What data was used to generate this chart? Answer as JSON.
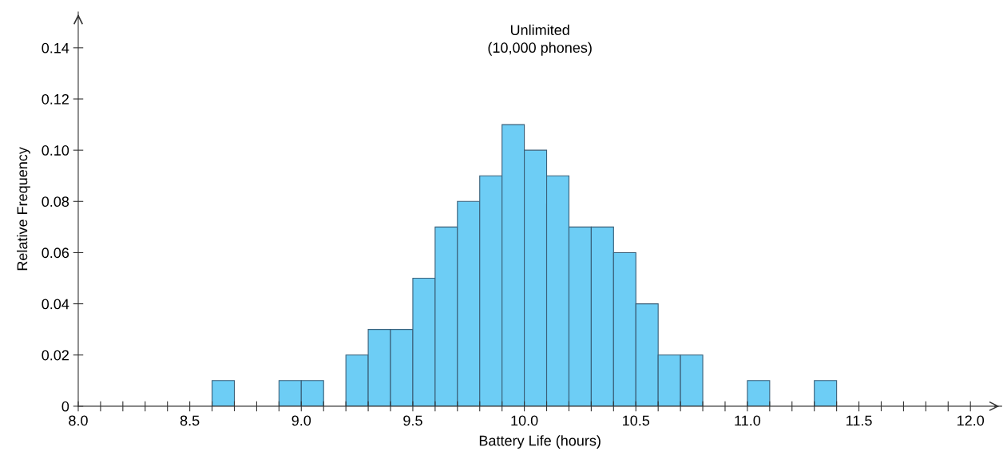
{
  "chart_data": {
    "type": "histogram",
    "title": "Unlimited\n(10,000 phones)",
    "xlabel": "Battery Life (hours)",
    "ylabel": "Relative Frequency",
    "bins": [
      8.6,
      8.7,
      8.8,
      8.9,
      9.0,
      9.1,
      9.2,
      9.3,
      9.4,
      9.5,
      9.6,
      9.7,
      9.8,
      9.9,
      10.0,
      10.1,
      10.2,
      10.3,
      10.4,
      10.5,
      10.6,
      10.7,
      10.8,
      10.9,
      11.0,
      11.1,
      11.2,
      11.3,
      11.4
    ],
    "values": [
      0.01,
      0,
      0,
      0.01,
      0.01,
      0,
      0.02,
      0.03,
      0.03,
      0.05,
      0.07,
      0.08,
      0.09,
      0.11,
      0.1,
      0.09,
      0.07,
      0.07,
      0.06,
      0.04,
      0.02,
      0.02,
      0,
      0,
      0.01,
      0,
      0,
      0.01
    ],
    "color": "#6dcdf5",
    "xlim": [
      8.0,
      12.14
    ],
    "ylim": [
      0,
      0.154
    ],
    "xticks": [
      {
        "value": 8.0,
        "label": "8.0"
      },
      {
        "value": 8.1,
        "label": null
      },
      {
        "value": 8.2,
        "label": null
      },
      {
        "value": 8.3,
        "label": null
      },
      {
        "value": 8.4,
        "label": null
      },
      {
        "value": 8.5,
        "label": "8.5"
      },
      {
        "value": 8.6,
        "label": null
      },
      {
        "value": 8.7,
        "label": null
      },
      {
        "value": 8.8,
        "label": null
      },
      {
        "value": 8.9,
        "label": null
      },
      {
        "value": 9.0,
        "label": "9.0"
      },
      {
        "value": 9.1,
        "label": null
      },
      {
        "value": 9.2,
        "label": null
      },
      {
        "value": 9.3,
        "label": null
      },
      {
        "value": 9.4,
        "label": null
      },
      {
        "value": 9.5,
        "label": "9.5"
      },
      {
        "value": 9.6,
        "label": null
      },
      {
        "value": 9.7,
        "label": null
      },
      {
        "value": 9.8,
        "label": null
      },
      {
        "value": 9.9,
        "label": null
      },
      {
        "value": 10.0,
        "label": "10.0"
      },
      {
        "value": 10.1,
        "label": null
      },
      {
        "value": 10.2,
        "label": null
      },
      {
        "value": 10.3,
        "label": null
      },
      {
        "value": 10.4,
        "label": null
      },
      {
        "value": 10.5,
        "label": "10.5"
      },
      {
        "value": 10.6,
        "label": null
      },
      {
        "value": 10.7,
        "label": null
      },
      {
        "value": 10.8,
        "label": null
      },
      {
        "value": 10.9,
        "label": null
      },
      {
        "value": 11.0,
        "label": "11.0"
      },
      {
        "value": 11.1,
        "label": null
      },
      {
        "value": 11.2,
        "label": null
      },
      {
        "value": 11.3,
        "label": null
      },
      {
        "value": 11.4,
        "label": null
      },
      {
        "value": 11.5,
        "label": "11.5"
      },
      {
        "value": 11.6,
        "label": null
      },
      {
        "value": 11.7,
        "label": null
      },
      {
        "value": 11.8,
        "label": null
      },
      {
        "value": 11.9,
        "label": null
      },
      {
        "value": 12.0,
        "label": "12.0"
      }
    ],
    "yticks": [
      0,
      {
        "value": 0.02,
        "label": "0.02"
      },
      {
        "value": 0.04,
        "label": "0.04"
      },
      {
        "value": 0.06,
        "label": "0.06"
      },
      {
        "value": 0.08,
        "label": "0.08"
      },
      {
        "value": 0.1,
        "label": "0.10"
      },
      {
        "value": 0.12,
        "label": "0.12"
      },
      {
        "value": 0.14,
        "label": "0.14"
      }
    ],
    "grid": false
  }
}
